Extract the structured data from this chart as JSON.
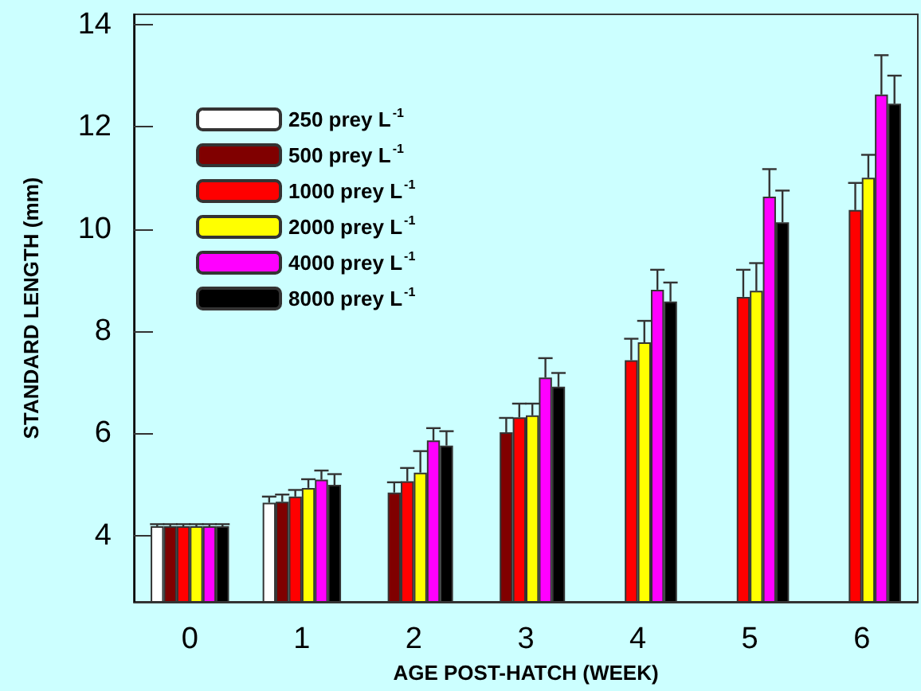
{
  "chart_data": {
    "type": "bar",
    "categories": [
      "0",
      "1",
      "2",
      "3",
      "4",
      "5",
      "6"
    ],
    "xlabel": "AGE POST-HATCH (WEEK)",
    "ylabel": "STANDARD LENGTH (mm)",
    "ylim": [
      2.7,
      14.2
    ],
    "yticks": [
      4,
      6,
      8,
      10,
      12,
      14
    ],
    "grid": false,
    "legend": "top left",
    "series": [
      {
        "name": "250 prey L$^{-1}$",
        "color": "#ffffff",
        "values": [
          4.18,
          4.64,
          null,
          null,
          null,
          null,
          null
        ],
        "errors": [
          0.04,
          0.12,
          null,
          null,
          null,
          null,
          null
        ]
      },
      {
        "name": "500 prey L$^{-1}$",
        "color": "#800000",
        "values": [
          4.18,
          4.66,
          4.84,
          6.02,
          null,
          null,
          null
        ],
        "errors": [
          0.04,
          0.14,
          0.2,
          0.28,
          null,
          null,
          null
        ]
      },
      {
        "name": "1000 prey L$^{-1}$",
        "color": "#ff0000",
        "values": [
          4.18,
          4.76,
          5.06,
          6.31,
          7.43,
          8.67,
          10.37
        ],
        "errors": [
          0.04,
          0.13,
          0.26,
          0.27,
          0.42,
          0.53,
          0.53
        ]
      },
      {
        "name": "2000 prey L$^{-1}$",
        "color": "#ffff00",
        "values": [
          4.18,
          4.93,
          5.23,
          6.35,
          7.78,
          8.79,
          11.0
        ],
        "errors": [
          0.04,
          0.17,
          0.42,
          0.23,
          0.42,
          0.54,
          0.45
        ]
      },
      {
        "name": "4000 prey L$^{-1}$",
        "color": "#ff00ff",
        "values": [
          4.18,
          5.09,
          5.86,
          7.09,
          8.81,
          10.63,
          12.63
        ],
        "errors": [
          0.04,
          0.18,
          0.24,
          0.38,
          0.39,
          0.54,
          0.77
        ]
      },
      {
        "name": "8000 prey L$^{-1}$",
        "color": "#000000",
        "values": [
          4.18,
          4.99,
          5.76,
          6.91,
          8.58,
          10.13,
          12.45
        ],
        "errors": [
          0.04,
          0.21,
          0.28,
          0.27,
          0.37,
          0.62,
          0.55
        ]
      }
    ]
  }
}
